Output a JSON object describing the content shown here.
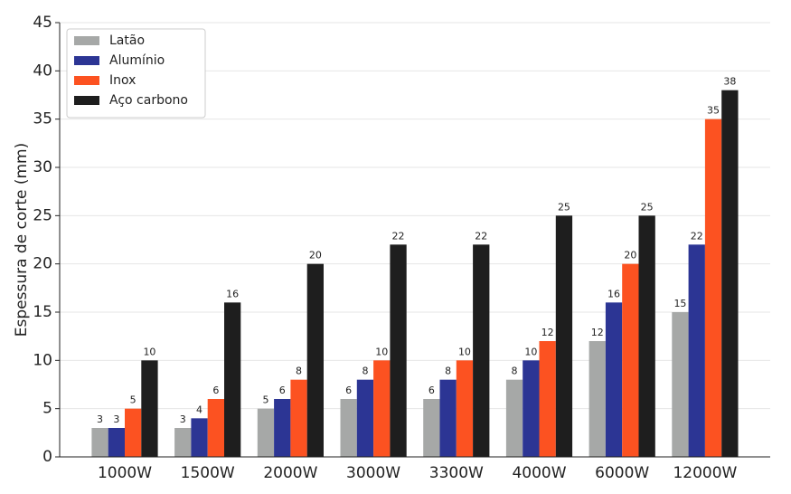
{
  "chart_data": {
    "type": "bar",
    "y_label": "Espessura de corte (mm)",
    "categories": [
      "1000W",
      "1500W",
      "2000W",
      "3000W",
      "3300W",
      "4000W",
      "6000W",
      "12000W"
    ],
    "series": [
      {
        "name": "Latão",
        "color": "#a6a8a7",
        "values": [
          3,
          3,
          5,
          6,
          6,
          8,
          12,
          15
        ]
      },
      {
        "name": "Alumínio",
        "color": "#2c3594",
        "values": [
          3,
          4,
          6,
          8,
          8,
          10,
          16,
          22
        ]
      },
      {
        "name": "Inox",
        "color": "#fc5221",
        "values": [
          5,
          6,
          8,
          10,
          10,
          12,
          20,
          35
        ]
      },
      {
        "name": "Aço carbono",
        "color": "#1e1e1e",
        "values": [
          10,
          16,
          20,
          22,
          22,
          25,
          25,
          38
        ]
      }
    ],
    "ylim": [
      0,
      45
    ],
    "yticks": [
      0,
      5,
      10,
      15,
      20,
      25,
      30,
      35,
      40,
      45
    ],
    "grid": true,
    "legend": "upper-left"
  }
}
